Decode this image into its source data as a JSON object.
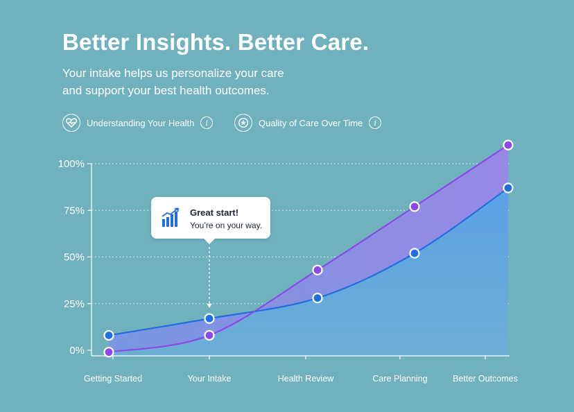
{
  "header": {
    "title": "Better Insights. Better Care.",
    "subtitle_line1": "Your intake helps us personalize your care",
    "subtitle_line2": "and support your best health outcomes."
  },
  "legend": [
    {
      "label": "Understanding Your Health",
      "icon": "heart-pulse-icon",
      "color": "#1f6fe0"
    },
    {
      "label": "Quality of Care Over Time",
      "icon": "star-icon",
      "color": "#8a48e8"
    }
  ],
  "tooltip": {
    "title": "Great start!",
    "text": "You’re on your way.",
    "icon": "bar-chart-growth-icon"
  },
  "chart_data": {
    "type": "line",
    "categories": [
      "Getting Started",
      "Your Intake",
      "Health Review",
      "Care Planning",
      "Better Outcomes"
    ],
    "y_ticks": [
      "0%",
      "25%",
      "50%",
      "75%",
      "100%"
    ],
    "ylim": [
      0,
      100
    ],
    "grid": true,
    "legend_position": "top-left",
    "series": [
      {
        "name": "Understanding Your Health",
        "color": "#1f6fe0",
        "x": [
          0,
          1,
          2,
          3,
          4
        ],
        "values": [
          8,
          17,
          28,
          52,
          87
        ]
      },
      {
        "name": "Quality of Care Over Time",
        "color": "#8a48e8",
        "x": [
          0,
          1,
          2,
          3,
          4
        ],
        "values": [
          -1,
          8,
          43,
          77,
          110
        ]
      }
    ]
  }
}
